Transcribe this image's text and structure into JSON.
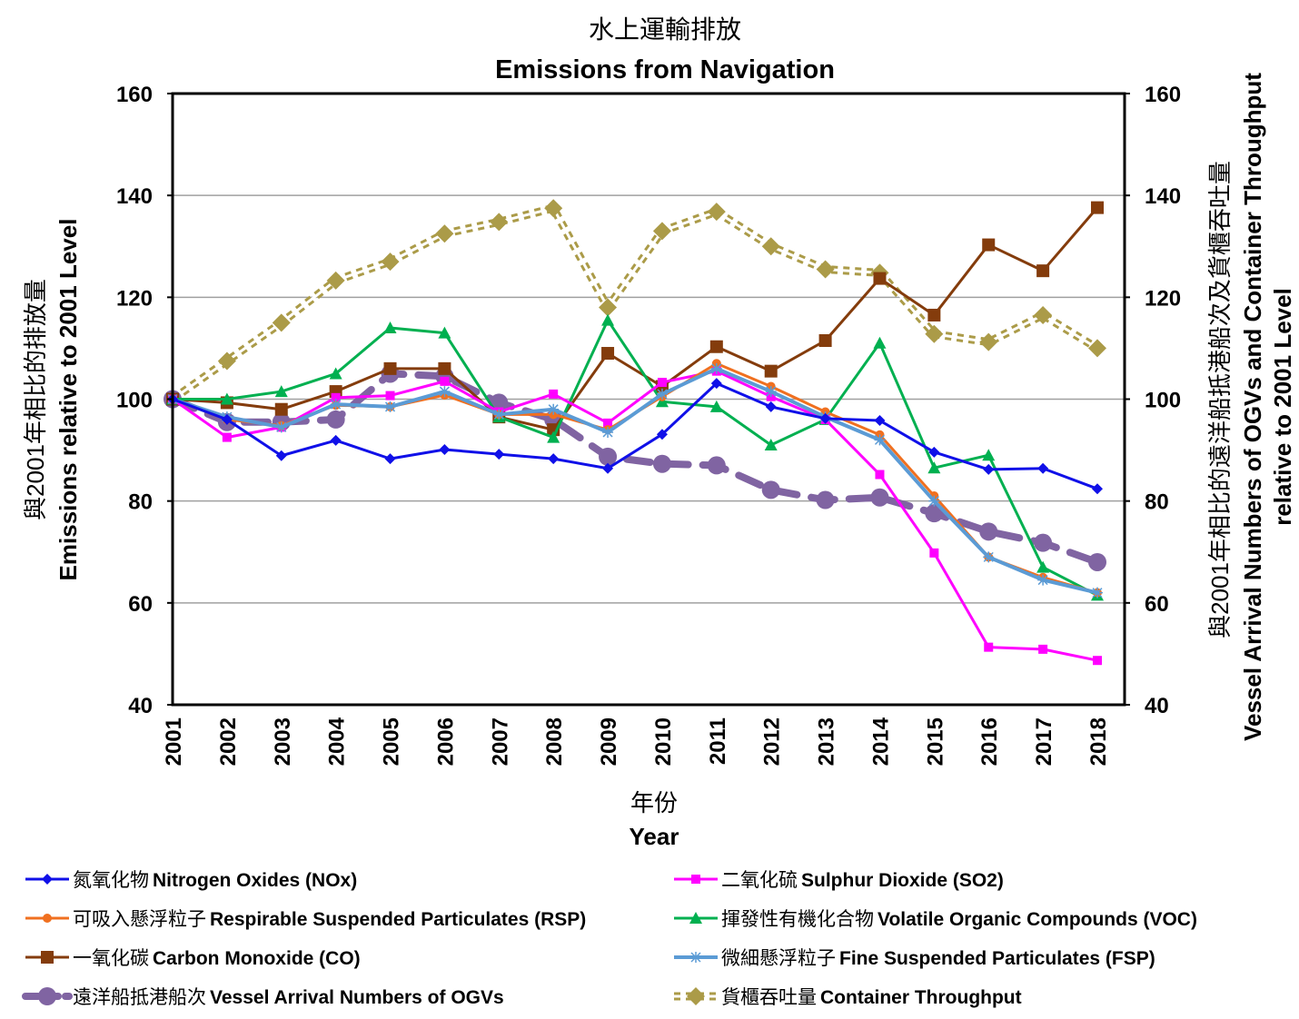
{
  "chart_data": {
    "type": "line",
    "title_zh": "水上運輸排放",
    "title": "Emissions from Navigation",
    "xlabel_zh": "年份",
    "xlabel": "Year",
    "ylabel_zh": "與2001年相比的排放量",
    "ylabel": "Emissions relative to 2001 Level",
    "y2label_zh": "與2001年相比的遠洋船抵港船次及貨櫃吞吐量",
    "y2label_line1": "Vessel Arrival Numbers of OGVs and Container Throughput",
    "y2label_line2": "relative to 2001 Level",
    "ylim": [
      40,
      160
    ],
    "y2lim": [
      40,
      160
    ],
    "yticks": [
      "40",
      "60",
      "80",
      "100",
      "120",
      "140",
      "160"
    ],
    "grid": true,
    "legend_position": "bottom",
    "categories": [
      "2001",
      "2002",
      "2003",
      "2004",
      "2005",
      "2006",
      "2007",
      "2008",
      "2009",
      "2010",
      "2011",
      "2012",
      "2013",
      "2014",
      "2015",
      "2016",
      "2017",
      "2018"
    ],
    "series": [
      {
        "name_zh": "氮氧化物",
        "name": "Nitrogen Oxides (NOx)",
        "color": "#1010e8",
        "marker": "diamond",
        "dash": false,
        "width": 3,
        "values": [
          100,
          96,
          88.9,
          91.9,
          88.3,
          90.1,
          89.2,
          88.3,
          86.4,
          93.1,
          103.1,
          98.5,
          96.2,
          95.8,
          89.6,
          86.2,
          86.4,
          82.4
        ]
      },
      {
        "name_zh": "二氧化硫",
        "name": "Sulphur Dioxide (SO2)",
        "color": "#ff00ff",
        "marker": "square",
        "dash": false,
        "width": 3,
        "values": [
          100,
          92.5,
          94.5,
          100.3,
          100.7,
          103.5,
          97.5,
          101,
          95.3,
          103.3,
          105.5,
          100.5,
          96,
          85.2,
          69.8,
          51.3,
          50.9,
          48.7
        ]
      },
      {
        "name_zh": "可吸入懸浮粒子",
        "name": "Respirable Suspended Particulates (RSP)",
        "color": "#f07020",
        "marker": "circle",
        "dash": false,
        "width": 3,
        "values": [
          100,
          96,
          94.8,
          98.8,
          98.5,
          100.8,
          97,
          97,
          94,
          100.5,
          107,
          102.5,
          97.5,
          93,
          81,
          69,
          65,
          62
        ]
      },
      {
        "name_zh": "揮發性有機化合物",
        "name": "Volatile Organic Compounds (VOC)",
        "color": "#00b050",
        "marker": "triangle",
        "dash": false,
        "width": 3,
        "values": [
          100,
          100,
          101.5,
          105,
          114,
          113,
          96.5,
          92.5,
          115.5,
          99.5,
          98.5,
          91,
          96,
          111,
          86.5,
          89,
          67,
          61.5
        ]
      },
      {
        "name_zh": "一氧化碳",
        "name": "Carbon Monoxide (CO)",
        "color": "#843c0c",
        "marker": "bigsquare",
        "dash": false,
        "width": 3,
        "values": [
          100,
          99.3,
          98,
          101.5,
          106,
          106,
          96.5,
          94,
          109,
          102.5,
          110.3,
          105.5,
          111.5,
          123.7,
          116.5,
          130.3,
          125.2,
          137.6
        ]
      },
      {
        "name_zh": "微細懸浮粒子",
        "name": "Fine Suspended Particulates (FSP)",
        "color": "#5b9bd5",
        "marker": "star",
        "dash": false,
        "width": 4,
        "values": [
          100,
          96.5,
          94.5,
          99,
          98.5,
          101.5,
          97,
          98,
          93.5,
          101,
          106,
          101.5,
          96.5,
          92,
          80,
          69,
          64.5,
          62
        ]
      },
      {
        "name_zh": "遠洋船抵港船次",
        "name": "Vessel Arrival Numbers of OGVs",
        "color": "#8064a2",
        "marker": "bigcircle",
        "dash": true,
        "width": 8,
        "values": [
          100,
          95.5,
          95.5,
          96,
          105,
          104.5,
          99.3,
          96,
          88.7,
          87.3,
          87,
          82.2,
          80.2,
          80.7,
          77.6,
          74,
          71.8,
          68
        ]
      },
      {
        "name_zh": "貨櫃吞吐量",
        "name": "Container Throughput",
        "color": "#ab9b48",
        "marker": "diamond-big",
        "dash": "double",
        "width": 3,
        "values": [
          100,
          107.5,
          115,
          123.3,
          127,
          132.5,
          134.8,
          137.5,
          118,
          133,
          136.8,
          130,
          125.5,
          124.8,
          112.8,
          111.2,
          116.5,
          110
        ]
      }
    ]
  }
}
